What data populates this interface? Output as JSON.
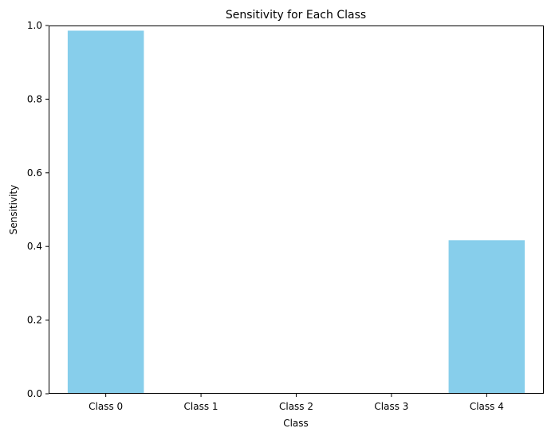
{
  "chart_data": {
    "type": "bar",
    "title": "Sensitivity for Each Class",
    "xlabel": "Class",
    "ylabel": "Sensitivity",
    "categories": [
      "Class 0",
      "Class 1",
      "Class 2",
      "Class 3",
      "Class 4"
    ],
    "values": [
      0.986,
      0.0,
      0.0,
      0.0,
      0.417
    ],
    "ylim": [
      0,
      1.0
    ],
    "yticks": [
      0.0,
      0.2,
      0.4,
      0.6,
      0.8,
      1.0
    ],
    "ytick_labels": [
      "0.0",
      "0.2",
      "0.4",
      "0.6",
      "0.8",
      "1.0"
    ],
    "bar_color": "#87ceeb",
    "grid": false,
    "legend": "none"
  }
}
